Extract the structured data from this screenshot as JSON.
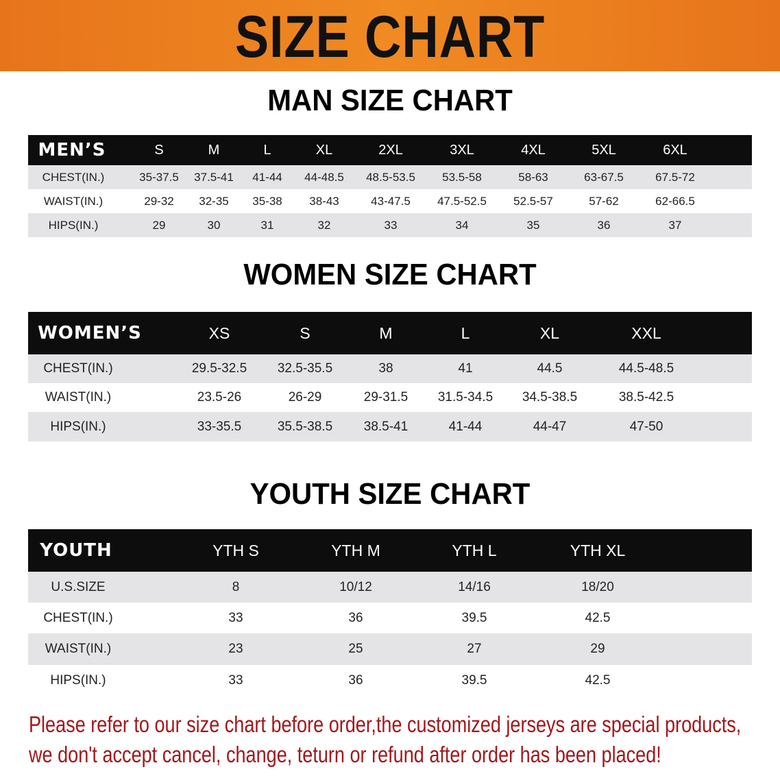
{
  "banner": {
    "title": "SIZE CHART",
    "color": "#ee8220"
  },
  "men": {
    "title": "MAN SIZE CHART",
    "headers": [
      "MEN’S",
      "S",
      "M",
      "L",
      "XL",
      "2XL",
      "3XL",
      "4XL",
      "5XL",
      "6XL"
    ],
    "rows": [
      [
        "CHEST(IN.)",
        "35-37.5",
        "37.5-41",
        "41-44",
        "44-48.5",
        "48.5-53.5",
        "53.5-58",
        "58-63",
        "63-67.5",
        "67.5-72"
      ],
      [
        "WAIST(IN.)",
        "29-32",
        "32-35",
        "35-38",
        "38-43",
        "43-47.5",
        "47.5-52.5",
        "52.5-57",
        "57-62",
        "62-66.5"
      ],
      [
        "HIPS(IN.)",
        "29",
        "30",
        "31",
        "32",
        "33",
        "34",
        "35",
        "36",
        "37"
      ]
    ]
  },
  "women": {
    "title": "WOMEN SIZE CHART",
    "headers": [
      "WOMEN’S",
      "XS",
      "S",
      "M",
      "L",
      "XL",
      "XXL"
    ],
    "rows": [
      [
        "CHEST(IN.)",
        "29.5-32.5",
        "32.5-35.5",
        "38",
        "41",
        "44.5",
        "44.5-48.5"
      ],
      [
        "WAIST(IN.)",
        "23.5-26",
        "26-29",
        "29-31.5",
        "31.5-34.5",
        "34.5-38.5",
        "38.5-42.5"
      ],
      [
        "HIPS(IN.)",
        "33-35.5",
        "35.5-38.5",
        "38.5-41",
        "41-44",
        "44-47",
        "47-50"
      ]
    ]
  },
  "youth": {
    "title": "YOUTH SIZE CHART",
    "headers": [
      "YOUTH",
      "YTH S",
      "YTH M",
      "YTH L",
      "YTH XL"
    ],
    "rows": [
      [
        "U.S.SIZE",
        "8",
        "10/12",
        "14/16",
        "18/20"
      ],
      [
        "CHEST(IN.)",
        "33",
        "36",
        "39.5",
        "42.5"
      ],
      [
        "WAIST(IN.)",
        "23",
        "25",
        "27",
        "29"
      ],
      [
        "HIPS(IN.)",
        "33",
        "36",
        "39.5",
        "42.5"
      ]
    ]
  },
  "disclaimer": {
    "line1": "Please refer to our size chart before order,the customized jerseys are special products,",
    "line2": "we don't accept cancel, change, teturn or refund after order has been placed!",
    "color": "#a3171b"
  }
}
